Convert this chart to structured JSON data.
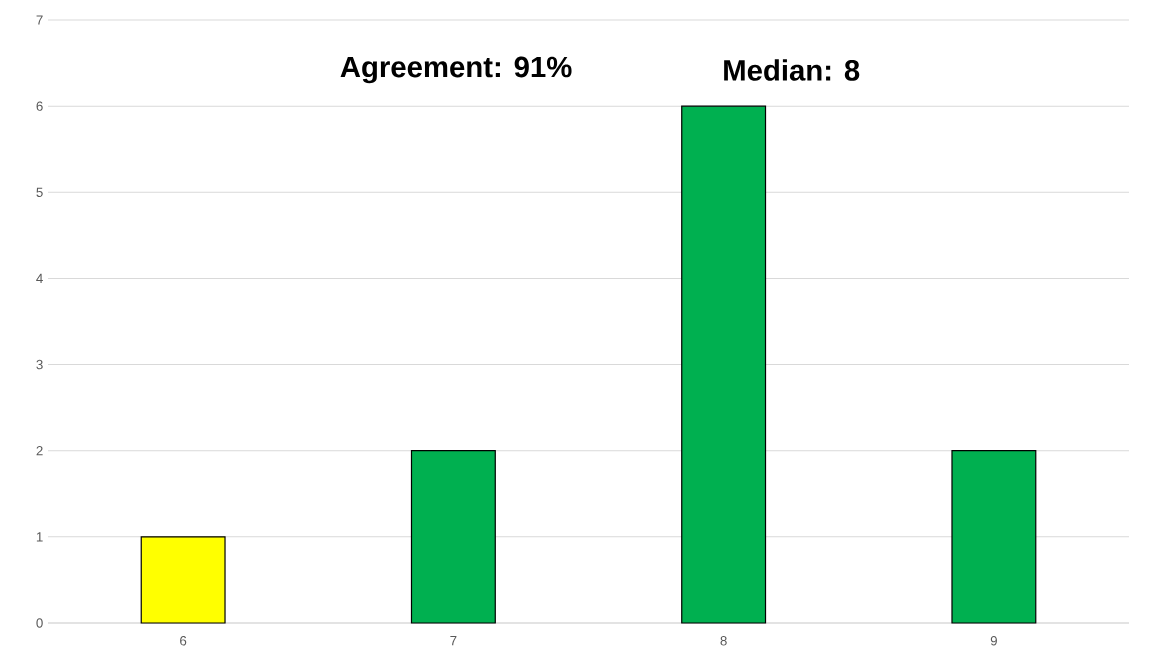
{
  "chart_data": {
    "type": "bar",
    "categories": [
      "6",
      "7",
      "8",
      "9"
    ],
    "values": [
      1,
      2,
      6,
      2
    ],
    "colors": [
      "#ffff00",
      "#00b050",
      "#00b050",
      "#00b050"
    ],
    "ylim": [
      0,
      7
    ],
    "yticks": [
      0,
      1,
      2,
      3,
      4,
      5,
      6,
      7
    ],
    "grid": "y",
    "annotations": [
      "**Agreement: 91%**",
      "**Median: 8**"
    ]
  }
}
